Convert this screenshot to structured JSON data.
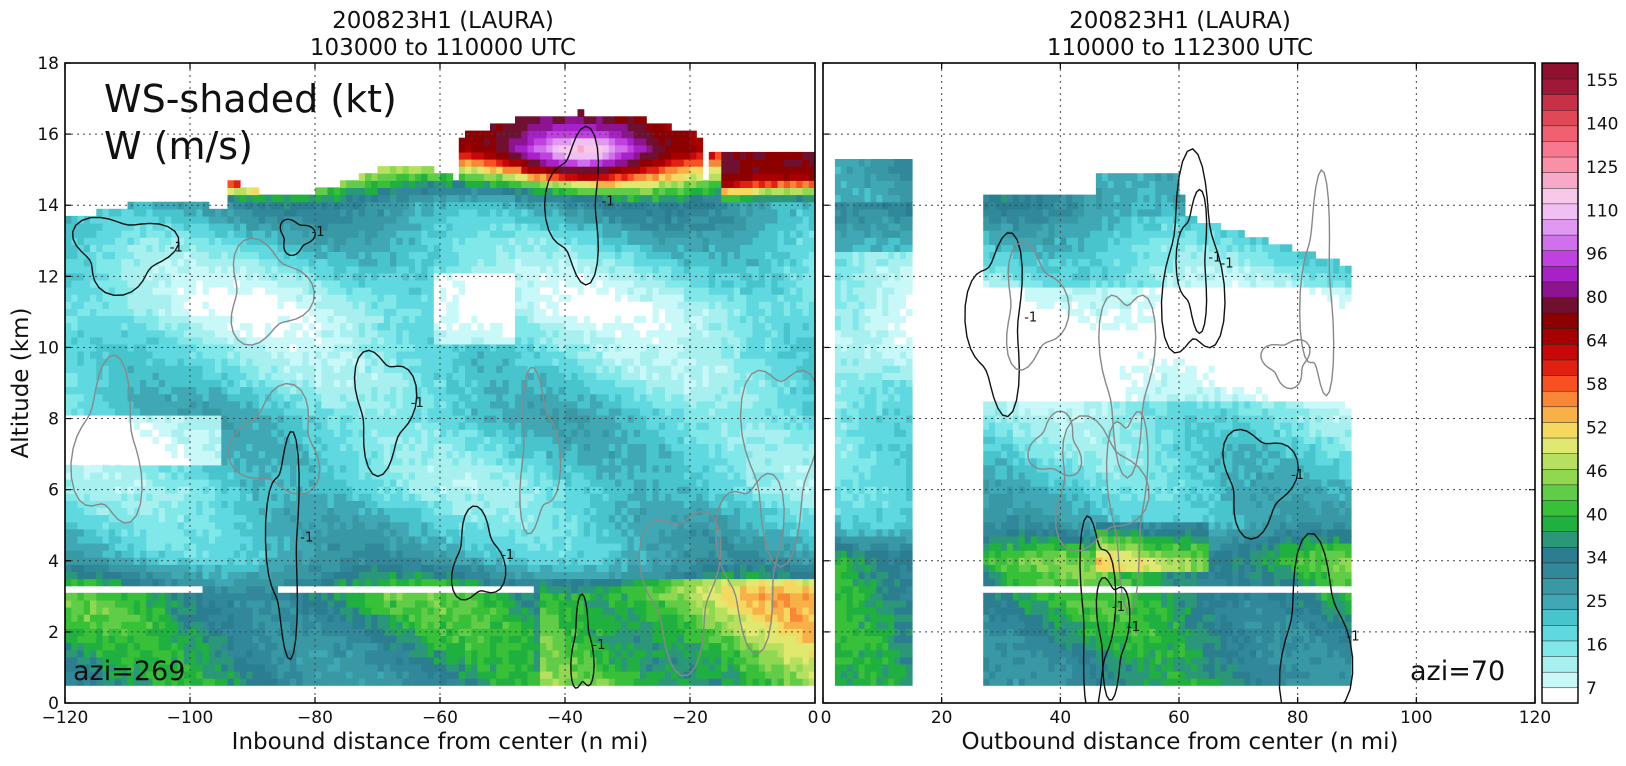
{
  "chart_data": [
    {
      "type": "heatmap",
      "title": "200823H1 (LAURA)",
      "subtitle": "103000 to 110000 UTC",
      "xlabel": "Inbound distance from center (n mi)",
      "ylabel": "Altitude (km)",
      "xlim": [
        -120,
        0
      ],
      "ylim": [
        0,
        18
      ],
      "xticks": [
        -120,
        -100,
        -80,
        -60,
        -40,
        -20,
        0
      ],
      "xtick_labels": [
        "−120",
        "−100",
        "−80",
        "−60",
        "−40",
        "−20",
        "0"
      ],
      "yticks": [
        0,
        2,
        4,
        6,
        8,
        10,
        12,
        14,
        16,
        18
      ],
      "ytick_labels": [
        "0",
        "2",
        "4",
        "6",
        "8",
        "10",
        "12",
        "14",
        "16",
        "18"
      ],
      "grid": true,
      "annotations": {
        "field_line1": "WS-shaded (kt)",
        "field_line2": "W (m/s)",
        "azimuth": "azi=269"
      },
      "contour_labels": [
        "1",
        "-1"
      ],
      "windspeed_kt_by_altitude": [
        {
          "altitude_km": 1,
          "ws_kt": 34
        },
        {
          "altitude_km": 2,
          "ws_kt": 36
        },
        {
          "altitude_km": 3,
          "ws_kt": 38
        },
        {
          "altitude_km": 4,
          "ws_kt": 25
        },
        {
          "altitude_km": 5,
          "ws_kt": 22
        },
        {
          "altitude_km": 6,
          "ws_kt": 18
        },
        {
          "altitude_km": 7,
          "ws_kt": 20
        },
        {
          "altitude_km": 8,
          "ws_kt": 22
        },
        {
          "altitude_km": 9,
          "ws_kt": 18
        },
        {
          "altitude_km": 10,
          "ws_kt": 16
        },
        {
          "altitude_km": 11,
          "ws_kt": 12
        },
        {
          "altitude_km": 12,
          "ws_kt": 16
        },
        {
          "altitude_km": 13,
          "ws_kt": 22
        },
        {
          "altitude_km": 14,
          "ws_kt": 30
        },
        {
          "altitude_km": 15,
          "ws_kt": 55
        },
        {
          "altitude_km": 15.5,
          "ws_kt": 70
        }
      ]
    },
    {
      "type": "heatmap",
      "title": "200823H1 (LAURA)",
      "subtitle": "110000 to 112300 UTC",
      "xlabel": "Outbound distance from center (n mi)",
      "ylabel": "",
      "xlim": [
        0,
        120
      ],
      "ylim": [
        0,
        18
      ],
      "xticks": [
        0,
        20,
        40,
        60,
        80,
        100,
        120
      ],
      "xtick_labels": [
        "0",
        "20",
        "40",
        "60",
        "80",
        "100",
        "120"
      ],
      "grid": true,
      "annotations": {
        "azimuth": "azi=70"
      },
      "contour_labels": [
        "1",
        "-1"
      ],
      "windspeed_kt_by_altitude": [
        {
          "altitude_km": 1,
          "ws_kt": 34
        },
        {
          "altitude_km": 2,
          "ws_kt": 36
        },
        {
          "altitude_km": 4,
          "ws_kt": 40
        },
        {
          "altitude_km": 5,
          "ws_kt": 25
        },
        {
          "altitude_km": 6,
          "ws_kt": 22
        },
        {
          "altitude_km": 8,
          "ws_kt": 16
        },
        {
          "altitude_km": 10,
          "ws_kt": 7
        },
        {
          "altitude_km": 12,
          "ws_kt": 16
        },
        {
          "altitude_km": 13,
          "ws_kt": 22
        },
        {
          "altitude_km": 14,
          "ws_kt": 30
        }
      ]
    }
  ],
  "colorbar": {
    "label_values": [
      "155",
      "140",
      "125",
      "110",
      "96",
      "80",
      "64",
      "58",
      "52",
      "46",
      "40",
      "34",
      "25",
      "16",
      "7"
    ],
    "colors": [
      "#ffffff",
      "#c8f8f8",
      "#a8f0f0",
      "#80e8e8",
      "#60d8e0",
      "#48c4cc",
      "#40a8b4",
      "#3898a4",
      "#30889a",
      "#2a7e90",
      "#2a9878",
      "#20b040",
      "#38c038",
      "#60cc48",
      "#90d850",
      "#b8e060",
      "#e0e870",
      "#f4d860",
      "#f8b048",
      "#f88838",
      "#f85020",
      "#e02010",
      "#c80808",
      "#a80000",
      "#8c0000",
      "#701030",
      "#8c1490",
      "#a820c8",
      "#c040e0",
      "#d070ec",
      "#e098f0",
      "#f0c0f4",
      "#f8c8e8",
      "#f8a8c8",
      "#f890a8",
      "#f87890",
      "#f06070",
      "#e04858",
      "#c83048",
      "#a01838",
      "#901030"
    ]
  }
}
